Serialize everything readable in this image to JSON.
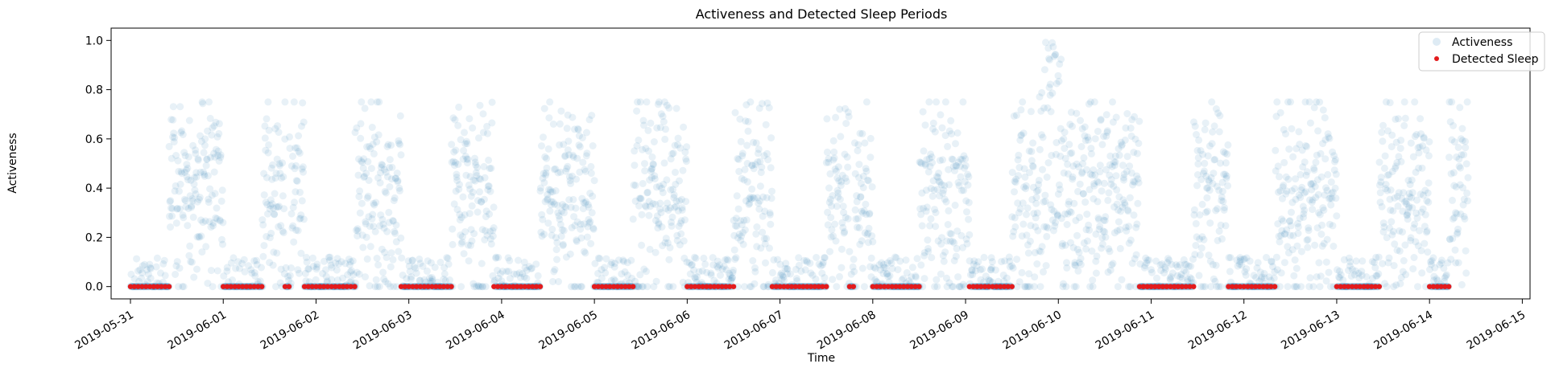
{
  "chart_data": {
    "type": "scatter",
    "title": "Activeness and Detected Sleep Periods",
    "xlabel": "Time",
    "ylabel": "Activeness",
    "x_range": [
      "2019-05-30T19:00",
      "2019-06-15T02:00"
    ],
    "ylim": [
      -0.05,
      1.05
    ],
    "x_ticks": [
      "2019-05-31",
      "2019-06-01",
      "2019-06-02",
      "2019-06-03",
      "2019-06-04",
      "2019-06-05",
      "2019-06-06",
      "2019-06-07",
      "2019-06-08",
      "2019-06-09",
      "2019-06-10",
      "2019-06-11",
      "2019-06-12",
      "2019-06-13",
      "2019-06-14",
      "2019-06-15"
    ],
    "y_ticks": [
      "0.0",
      "0.2",
      "0.4",
      "0.6",
      "0.8",
      "1.0"
    ],
    "grid": false,
    "legend_position": "top-right",
    "series": [
      {
        "name": "Activeness",
        "marker": "circle",
        "color": "#1f77b4",
        "opacity": 0.1,
        "x_start": "2019-05-31T00:00",
        "x_end": "2019-06-14T10:00",
        "approx_points_per_day": 260,
        "typical_range": [
          0.0,
          0.6
        ],
        "peak_value": 1.0,
        "peak_time": "2019-06-09T22:00"
      },
      {
        "name": "Detected Sleep",
        "marker": "dot",
        "color": "#e31a1c",
        "value": 0.0,
        "periods": [
          [
            "2019-05-31T00:00",
            "2019-05-31T10:00"
          ],
          [
            "2019-06-01T00:00",
            "2019-06-01T10:00"
          ],
          [
            "2019-06-01T16:00",
            "2019-06-01T17:00"
          ],
          [
            "2019-06-01T21:00",
            "2019-06-02T10:00"
          ],
          [
            "2019-06-02T22:00",
            "2019-06-03T11:00"
          ],
          [
            "2019-06-03T22:00",
            "2019-06-04T10:00"
          ],
          [
            "2019-06-05T00:00",
            "2019-06-05T10:00"
          ],
          [
            "2019-06-06T00:00",
            "2019-06-06T12:00"
          ],
          [
            "2019-06-06T22:00",
            "2019-06-07T12:00"
          ],
          [
            "2019-06-07T18:00",
            "2019-06-07T19:00"
          ],
          [
            "2019-06-08T00:00",
            "2019-06-08T12:00"
          ],
          [
            "2019-06-09T01:00",
            "2019-06-09T12:00"
          ],
          [
            "2019-06-10T22:00",
            "2019-06-11T08:00"
          ],
          [
            "2019-06-10T21:00",
            "2019-06-11T11:00"
          ],
          [
            "2019-06-11T20:00",
            "2019-06-12T08:00"
          ],
          [
            "2019-06-13T00:00",
            "2019-06-13T11:00"
          ],
          [
            "2019-06-14T00:00",
            "2019-06-14T05:00"
          ]
        ]
      }
    ]
  }
}
